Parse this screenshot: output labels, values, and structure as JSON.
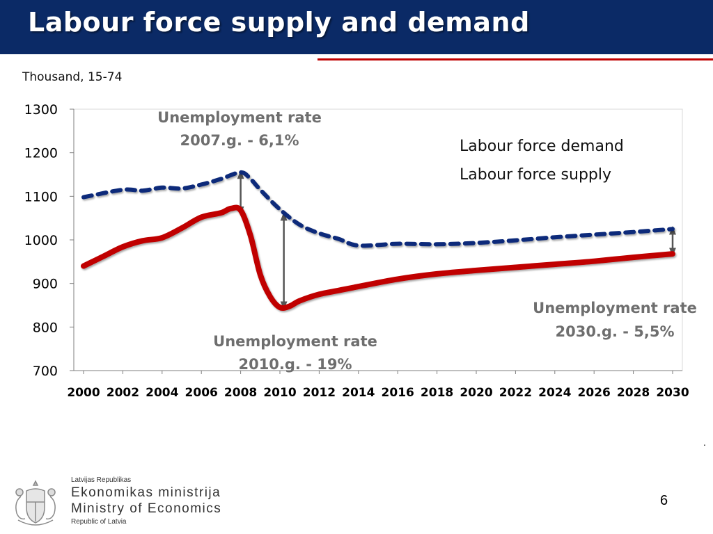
{
  "slide": {
    "title": "Labour force supply and demand",
    "subtitle": "Thousand, 15-74",
    "page_number": "6",
    "trailing_mark": ".",
    "colors": {
      "title_bar": "#0b2a66",
      "accent_line": "#c00000"
    }
  },
  "chart_data": {
    "type": "line",
    "title": "",
    "xlabel": "",
    "ylabel": "Thousand, 15-74",
    "ylim": [
      700,
      1300
    ],
    "yticks": [
      700,
      800,
      900,
      1000,
      1100,
      1200,
      1300
    ],
    "xlim": [
      2000,
      2030
    ],
    "xticks": [
      2000,
      2002,
      2004,
      2006,
      2008,
      2010,
      2012,
      2014,
      2016,
      2018,
      2020,
      2022,
      2024,
      2026,
      2028,
      2030
    ],
    "grid": false,
    "legend_position": "top-right",
    "series": [
      {
        "name": "Labour force demand",
        "color": "#c00000",
        "style": "solid",
        "x": [
          2000,
          2001,
          2002,
          2003,
          2004,
          2005,
          2006,
          2007,
          2007.5,
          2008,
          2008.5,
          2009,
          2009.5,
          2010,
          2010.5,
          2011,
          2012,
          2013,
          2014,
          2016,
          2018,
          2020,
          2022,
          2024,
          2026,
          2028,
          2030
        ],
        "values": [
          940,
          962,
          984,
          998,
          1005,
          1027,
          1052,
          1062,
          1072,
          1068,
          1010,
          920,
          870,
          845,
          848,
          860,
          875,
          884,
          893,
          910,
          922,
          930,
          937,
          944,
          951,
          960,
          968
        ]
      },
      {
        "name": "Labour force supply",
        "color": "#0b2a7a",
        "style": "dashed",
        "x": [
          2000,
          2002,
          2003,
          2004,
          2005,
          2006,
          2007,
          2008,
          2008.5,
          2009,
          2010,
          2011,
          2012,
          2013,
          2014,
          2016,
          2018,
          2020,
          2022,
          2024,
          2026,
          2028,
          2030
        ],
        "values": [
          1098,
          1115,
          1113,
          1120,
          1118,
          1127,
          1140,
          1155,
          1140,
          1115,
          1070,
          1035,
          1015,
          1002,
          987,
          991,
          990,
          993,
          999,
          1006,
          1012,
          1018,
          1025
        ]
      }
    ],
    "gap_markers": [
      {
        "x": 2008,
        "y_from": 1067,
        "y_to": 1150
      },
      {
        "x": 2010.2,
        "y_from": 849,
        "y_to": 1054
      },
      {
        "x": 2030,
        "y_from": 972,
        "y_to": 1022
      }
    ],
    "annotations": [
      {
        "id": "2007",
        "lines": [
          "Unemployment rate",
          "2007.g. - 6,1%"
        ]
      },
      {
        "id": "2010",
        "lines": [
          "Unemployment rate",
          "2010.g. - 19%"
        ]
      },
      {
        "id": "2030",
        "lines": [
          "Unemployment rate",
          "2030.g. - 5,5%"
        ]
      }
    ]
  },
  "footer": {
    "emblem_icon": "coat-of-arms-icon",
    "country": "Latvijas Republikas",
    "ministry_lv": "Ekonomikas ministrija",
    "ministry_en": "Ministry of Economics",
    "republic": "Republic of Latvia"
  }
}
